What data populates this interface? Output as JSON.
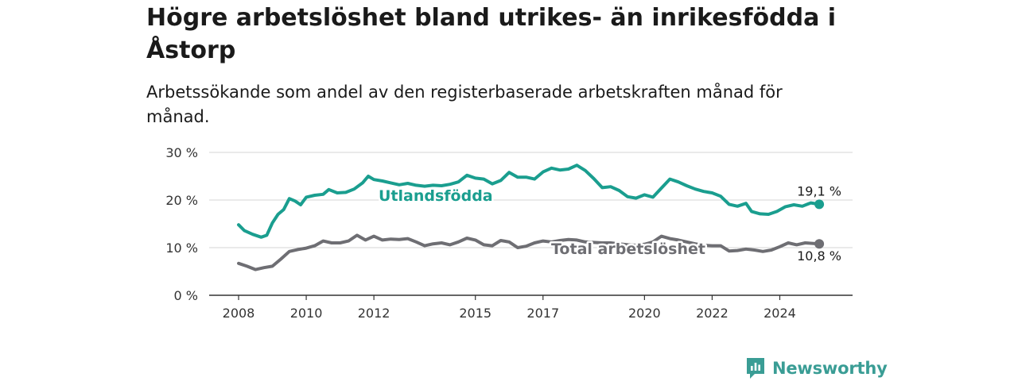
{
  "header": {
    "title": "Högre arbetslöshet bland utrikes- än inrikesfödda i Åstorp",
    "subtitle": "Arbetssökande som andel av den registerbaserade arbetskraften månad för månad."
  },
  "brand": {
    "name": "Newsworthy",
    "color": "#3a9d95"
  },
  "chart_data": {
    "type": "line",
    "x_ticks": [
      "2008",
      "2010",
      "2012",
      "2015",
      "2017",
      "2020",
      "2022",
      "2024"
    ],
    "y_ticks": [
      "0 %",
      "10 %",
      "20 %",
      "30 %"
    ],
    "ylim": [
      0,
      30
    ],
    "xlim": [
      "2008-01",
      "2025-12"
    ],
    "grid": "horizontal",
    "series": [
      {
        "name": "Utlandsfödda",
        "color": "#1a9e8f",
        "end_label": "19,1 %",
        "points": [
          [
            "2008-01",
            14.8
          ],
          [
            "2008-03",
            13.6
          ],
          [
            "2008-06",
            12.8
          ],
          [
            "2008-09",
            12.2
          ],
          [
            "2008-11",
            12.6
          ],
          [
            "2009-01",
            15.2
          ],
          [
            "2009-03",
            17.0
          ],
          [
            "2009-05",
            18.0
          ],
          [
            "2009-07",
            20.3
          ],
          [
            "2009-09",
            19.8
          ],
          [
            "2009-11",
            19.0
          ],
          [
            "2010-01",
            20.6
          ],
          [
            "2010-04",
            21.0
          ],
          [
            "2010-07",
            21.2
          ],
          [
            "2010-09",
            22.2
          ],
          [
            "2010-12",
            21.5
          ],
          [
            "2011-03",
            21.6
          ],
          [
            "2011-06",
            22.3
          ],
          [
            "2011-09",
            23.6
          ],
          [
            "2011-11",
            25.0
          ],
          [
            "2012-01",
            24.3
          ],
          [
            "2012-04",
            24.0
          ],
          [
            "2012-07",
            23.6
          ],
          [
            "2012-10",
            23.2
          ],
          [
            "2013-01",
            23.5
          ],
          [
            "2013-04",
            23.1
          ],
          [
            "2013-07",
            22.9
          ],
          [
            "2013-10",
            23.1
          ],
          [
            "2014-01",
            23.0
          ],
          [
            "2014-04",
            23.3
          ],
          [
            "2014-07",
            23.8
          ],
          [
            "2014-10",
            25.2
          ],
          [
            "2015-01",
            24.6
          ],
          [
            "2015-04",
            24.4
          ],
          [
            "2015-07",
            23.4
          ],
          [
            "2015-10",
            24.1
          ],
          [
            "2016-01",
            25.8
          ],
          [
            "2016-04",
            24.8
          ],
          [
            "2016-07",
            24.8
          ],
          [
            "2016-10",
            24.4
          ],
          [
            "2017-01",
            25.9
          ],
          [
            "2017-04",
            26.7
          ],
          [
            "2017-07",
            26.3
          ],
          [
            "2017-10",
            26.5
          ],
          [
            "2018-01",
            27.3
          ],
          [
            "2018-04",
            26.2
          ],
          [
            "2018-07",
            24.5
          ],
          [
            "2018-10",
            22.6
          ],
          [
            "2019-01",
            22.8
          ],
          [
            "2019-04",
            22.0
          ],
          [
            "2019-07",
            20.7
          ],
          [
            "2019-10",
            20.4
          ],
          [
            "2020-01",
            21.1
          ],
          [
            "2020-04",
            20.6
          ],
          [
            "2020-07",
            22.5
          ],
          [
            "2020-10",
            24.4
          ],
          [
            "2021-01",
            23.8
          ],
          [
            "2021-04",
            23.0
          ],
          [
            "2021-07",
            22.3
          ],
          [
            "2021-10",
            21.8
          ],
          [
            "2022-01",
            21.5
          ],
          [
            "2022-04",
            20.8
          ],
          [
            "2022-07",
            19.1
          ],
          [
            "2022-10",
            18.7
          ],
          [
            "2023-01",
            19.3
          ],
          [
            "2023-03",
            17.6
          ],
          [
            "2023-06",
            17.1
          ],
          [
            "2023-09",
            17.0
          ],
          [
            "2023-12",
            17.6
          ],
          [
            "2024-03",
            18.6
          ],
          [
            "2024-06",
            19.0
          ],
          [
            "2024-09",
            18.7
          ],
          [
            "2024-12",
            19.4
          ],
          [
            "2025-03",
            19.1
          ]
        ]
      },
      {
        "name": "Total arbetslöshet",
        "color": "#6e6e73",
        "end_label": "10,8 %",
        "points": [
          [
            "2008-01",
            6.7
          ],
          [
            "2008-04",
            6.1
          ],
          [
            "2008-07",
            5.4
          ],
          [
            "2008-10",
            5.8
          ],
          [
            "2009-01",
            6.1
          ],
          [
            "2009-04",
            7.6
          ],
          [
            "2009-07",
            9.2
          ],
          [
            "2009-10",
            9.6
          ],
          [
            "2010-01",
            9.9
          ],
          [
            "2010-04",
            10.4
          ],
          [
            "2010-07",
            11.4
          ],
          [
            "2010-10",
            11.0
          ],
          [
            "2011-01",
            11.0
          ],
          [
            "2011-04",
            11.4
          ],
          [
            "2011-07",
            12.6
          ],
          [
            "2011-10",
            11.6
          ],
          [
            "2012-01",
            12.4
          ],
          [
            "2012-04",
            11.6
          ],
          [
            "2012-07",
            11.8
          ],
          [
            "2012-10",
            11.7
          ],
          [
            "2013-01",
            11.9
          ],
          [
            "2013-04",
            11.2
          ],
          [
            "2013-07",
            10.4
          ],
          [
            "2013-10",
            10.8
          ],
          [
            "2014-01",
            11.0
          ],
          [
            "2014-04",
            10.6
          ],
          [
            "2014-07",
            11.2
          ],
          [
            "2014-10",
            12.0
          ],
          [
            "2015-01",
            11.6
          ],
          [
            "2015-04",
            10.6
          ],
          [
            "2015-07",
            10.4
          ],
          [
            "2015-10",
            11.5
          ],
          [
            "2016-01",
            11.2
          ],
          [
            "2016-04",
            10.0
          ],
          [
            "2016-07",
            10.3
          ],
          [
            "2016-10",
            11.0
          ],
          [
            "2017-01",
            11.4
          ],
          [
            "2017-04",
            11.2
          ],
          [
            "2017-07",
            11.5
          ],
          [
            "2017-10",
            11.7
          ],
          [
            "2018-01",
            11.6
          ],
          [
            "2018-04",
            11.2
          ],
          [
            "2018-07",
            11.1
          ],
          [
            "2018-10",
            11.0
          ],
          [
            "2019-01",
            11.0
          ],
          [
            "2019-04",
            10.8
          ],
          [
            "2019-07",
            10.6
          ],
          [
            "2019-10",
            10.5
          ],
          [
            "2020-01",
            10.7
          ],
          [
            "2020-04",
            11.2
          ],
          [
            "2020-07",
            12.4
          ],
          [
            "2020-10",
            11.9
          ],
          [
            "2021-01",
            11.6
          ],
          [
            "2021-04",
            11.2
          ],
          [
            "2021-07",
            10.8
          ],
          [
            "2021-10",
            10.5
          ],
          [
            "2022-01",
            10.4
          ],
          [
            "2022-04",
            10.4
          ],
          [
            "2022-07",
            9.3
          ],
          [
            "2022-10",
            9.4
          ],
          [
            "2023-01",
            9.7
          ],
          [
            "2023-04",
            9.5
          ],
          [
            "2023-07",
            9.2
          ],
          [
            "2023-10",
            9.5
          ],
          [
            "2024-01",
            10.2
          ],
          [
            "2024-04",
            11.0
          ],
          [
            "2024-07",
            10.6
          ],
          [
            "2024-10",
            11.0
          ],
          [
            "2025-03",
            10.8
          ]
        ]
      }
    ]
  }
}
